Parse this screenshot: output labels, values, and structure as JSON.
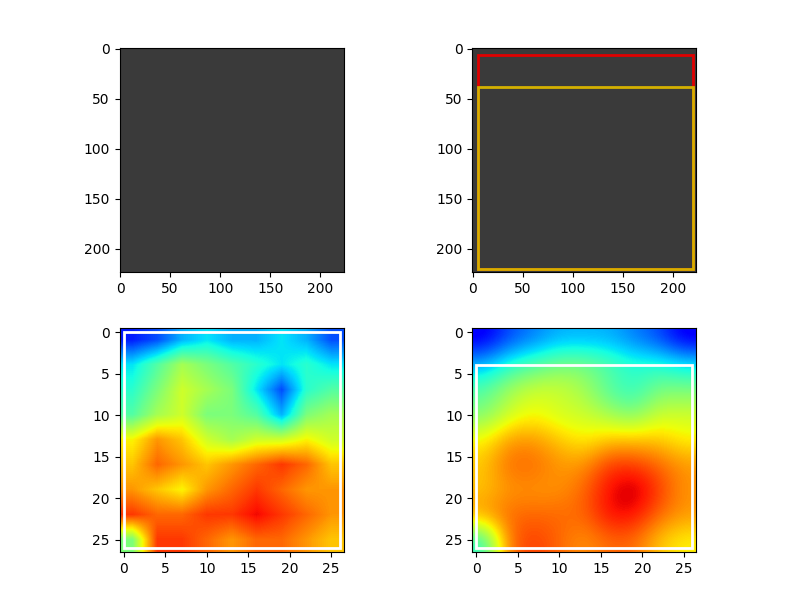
{
  "chart_data": [
    {
      "type": "image",
      "color": "#3a3a3a",
      "xlim": [
        -0.5,
        223.5
      ],
      "ylim": [
        223.5,
        -0.5
      ],
      "xticks": [
        0,
        50,
        100,
        150,
        200
      ],
      "yticks": [
        0,
        50,
        100,
        150,
        200
      ]
    },
    {
      "type": "image",
      "color": "#3a3a3a",
      "xlim": [
        -0.5,
        223.5
      ],
      "ylim": [
        223.5,
        -0.5
      ],
      "xticks": [
        0,
        50,
        100,
        150,
        200
      ],
      "yticks": [
        0,
        50,
        100,
        150,
        200
      ],
      "boxes": [
        {
          "color": "#e00000",
          "x0": 5,
          "y0": 6,
          "x1": 220,
          "y1": 220
        },
        {
          "color": "#d4b000",
          "x0": 5,
          "y0": 38,
          "x1": 220,
          "y1": 220
        }
      ]
    },
    {
      "type": "heatmap",
      "xlim": [
        -0.5,
        26.5
      ],
      "ylim": [
        26.5,
        -0.5
      ],
      "xticks": [
        0,
        5,
        10,
        15,
        20,
        25
      ],
      "yticks": [
        0,
        5,
        10,
        15,
        20,
        25
      ],
      "color_range": [
        0,
        1
      ],
      "cells": [
        [
          0.15,
          0.2,
          0.3,
          0.35,
          0.3,
          0.3,
          0.35,
          0.3,
          0.2
        ],
        [
          0.35,
          0.45,
          0.55,
          0.5,
          0.45,
          0.4,
          0.35,
          0.4,
          0.35
        ],
        [
          0.4,
          0.5,
          0.6,
          0.55,
          0.5,
          0.35,
          0.2,
          0.4,
          0.45
        ],
        [
          0.45,
          0.55,
          0.6,
          0.5,
          0.5,
          0.45,
          0.3,
          0.5,
          0.55
        ],
        [
          0.65,
          0.75,
          0.7,
          0.6,
          0.55,
          0.6,
          0.6,
          0.65,
          0.6
        ],
        [
          0.7,
          0.8,
          0.75,
          0.7,
          0.75,
          0.8,
          0.85,
          0.8,
          0.7
        ],
        [
          0.75,
          0.7,
          0.65,
          0.75,
          0.8,
          0.85,
          0.8,
          0.75,
          0.75
        ],
        [
          0.85,
          0.8,
          0.8,
          0.85,
          0.85,
          0.9,
          0.85,
          0.8,
          0.75
        ],
        [
          0.5,
          0.85,
          0.85,
          0.8,
          0.75,
          0.8,
          0.8,
          0.75,
          0.7
        ]
      ],
      "boxes": [
        {
          "color": "#ffffff",
          "x0": 0,
          "y0": 0,
          "x1": 26,
          "y1": 26
        }
      ]
    },
    {
      "type": "heatmap",
      "xlim": [
        -0.5,
        26.5
      ],
      "ylim": [
        26.5,
        -0.5
      ],
      "xticks": [
        0,
        5,
        10,
        15,
        20,
        25
      ],
      "yticks": [
        0,
        5,
        10,
        15,
        20,
        25
      ],
      "color_range": [
        0,
        1
      ],
      "cells": [
        [
          0.1,
          0.2,
          0.25,
          0.3,
          0.3,
          0.3,
          0.25,
          0.2,
          0.1
        ],
        [
          0.3,
          0.4,
          0.45,
          0.5,
          0.5,
          0.45,
          0.4,
          0.4,
          0.35
        ],
        [
          0.45,
          0.55,
          0.6,
          0.6,
          0.55,
          0.45,
          0.4,
          0.5,
          0.5
        ],
        [
          0.5,
          0.6,
          0.65,
          0.6,
          0.6,
          0.55,
          0.5,
          0.6,
          0.6
        ],
        [
          0.65,
          0.75,
          0.75,
          0.7,
          0.65,
          0.7,
          0.7,
          0.7,
          0.65
        ],
        [
          0.7,
          0.8,
          0.8,
          0.75,
          0.75,
          0.85,
          0.85,
          0.8,
          0.75
        ],
        [
          0.7,
          0.75,
          0.75,
          0.75,
          0.8,
          0.9,
          0.95,
          0.85,
          0.75
        ],
        [
          0.75,
          0.8,
          0.8,
          0.8,
          0.8,
          0.9,
          0.9,
          0.8,
          0.75
        ],
        [
          0.4,
          0.8,
          0.85,
          0.8,
          0.75,
          0.8,
          0.8,
          0.7,
          0.65
        ]
      ],
      "boxes": [
        {
          "color": "#ffffff",
          "x0": 0,
          "y0": 4,
          "x1": 26,
          "y1": 26
        }
      ]
    }
  ]
}
